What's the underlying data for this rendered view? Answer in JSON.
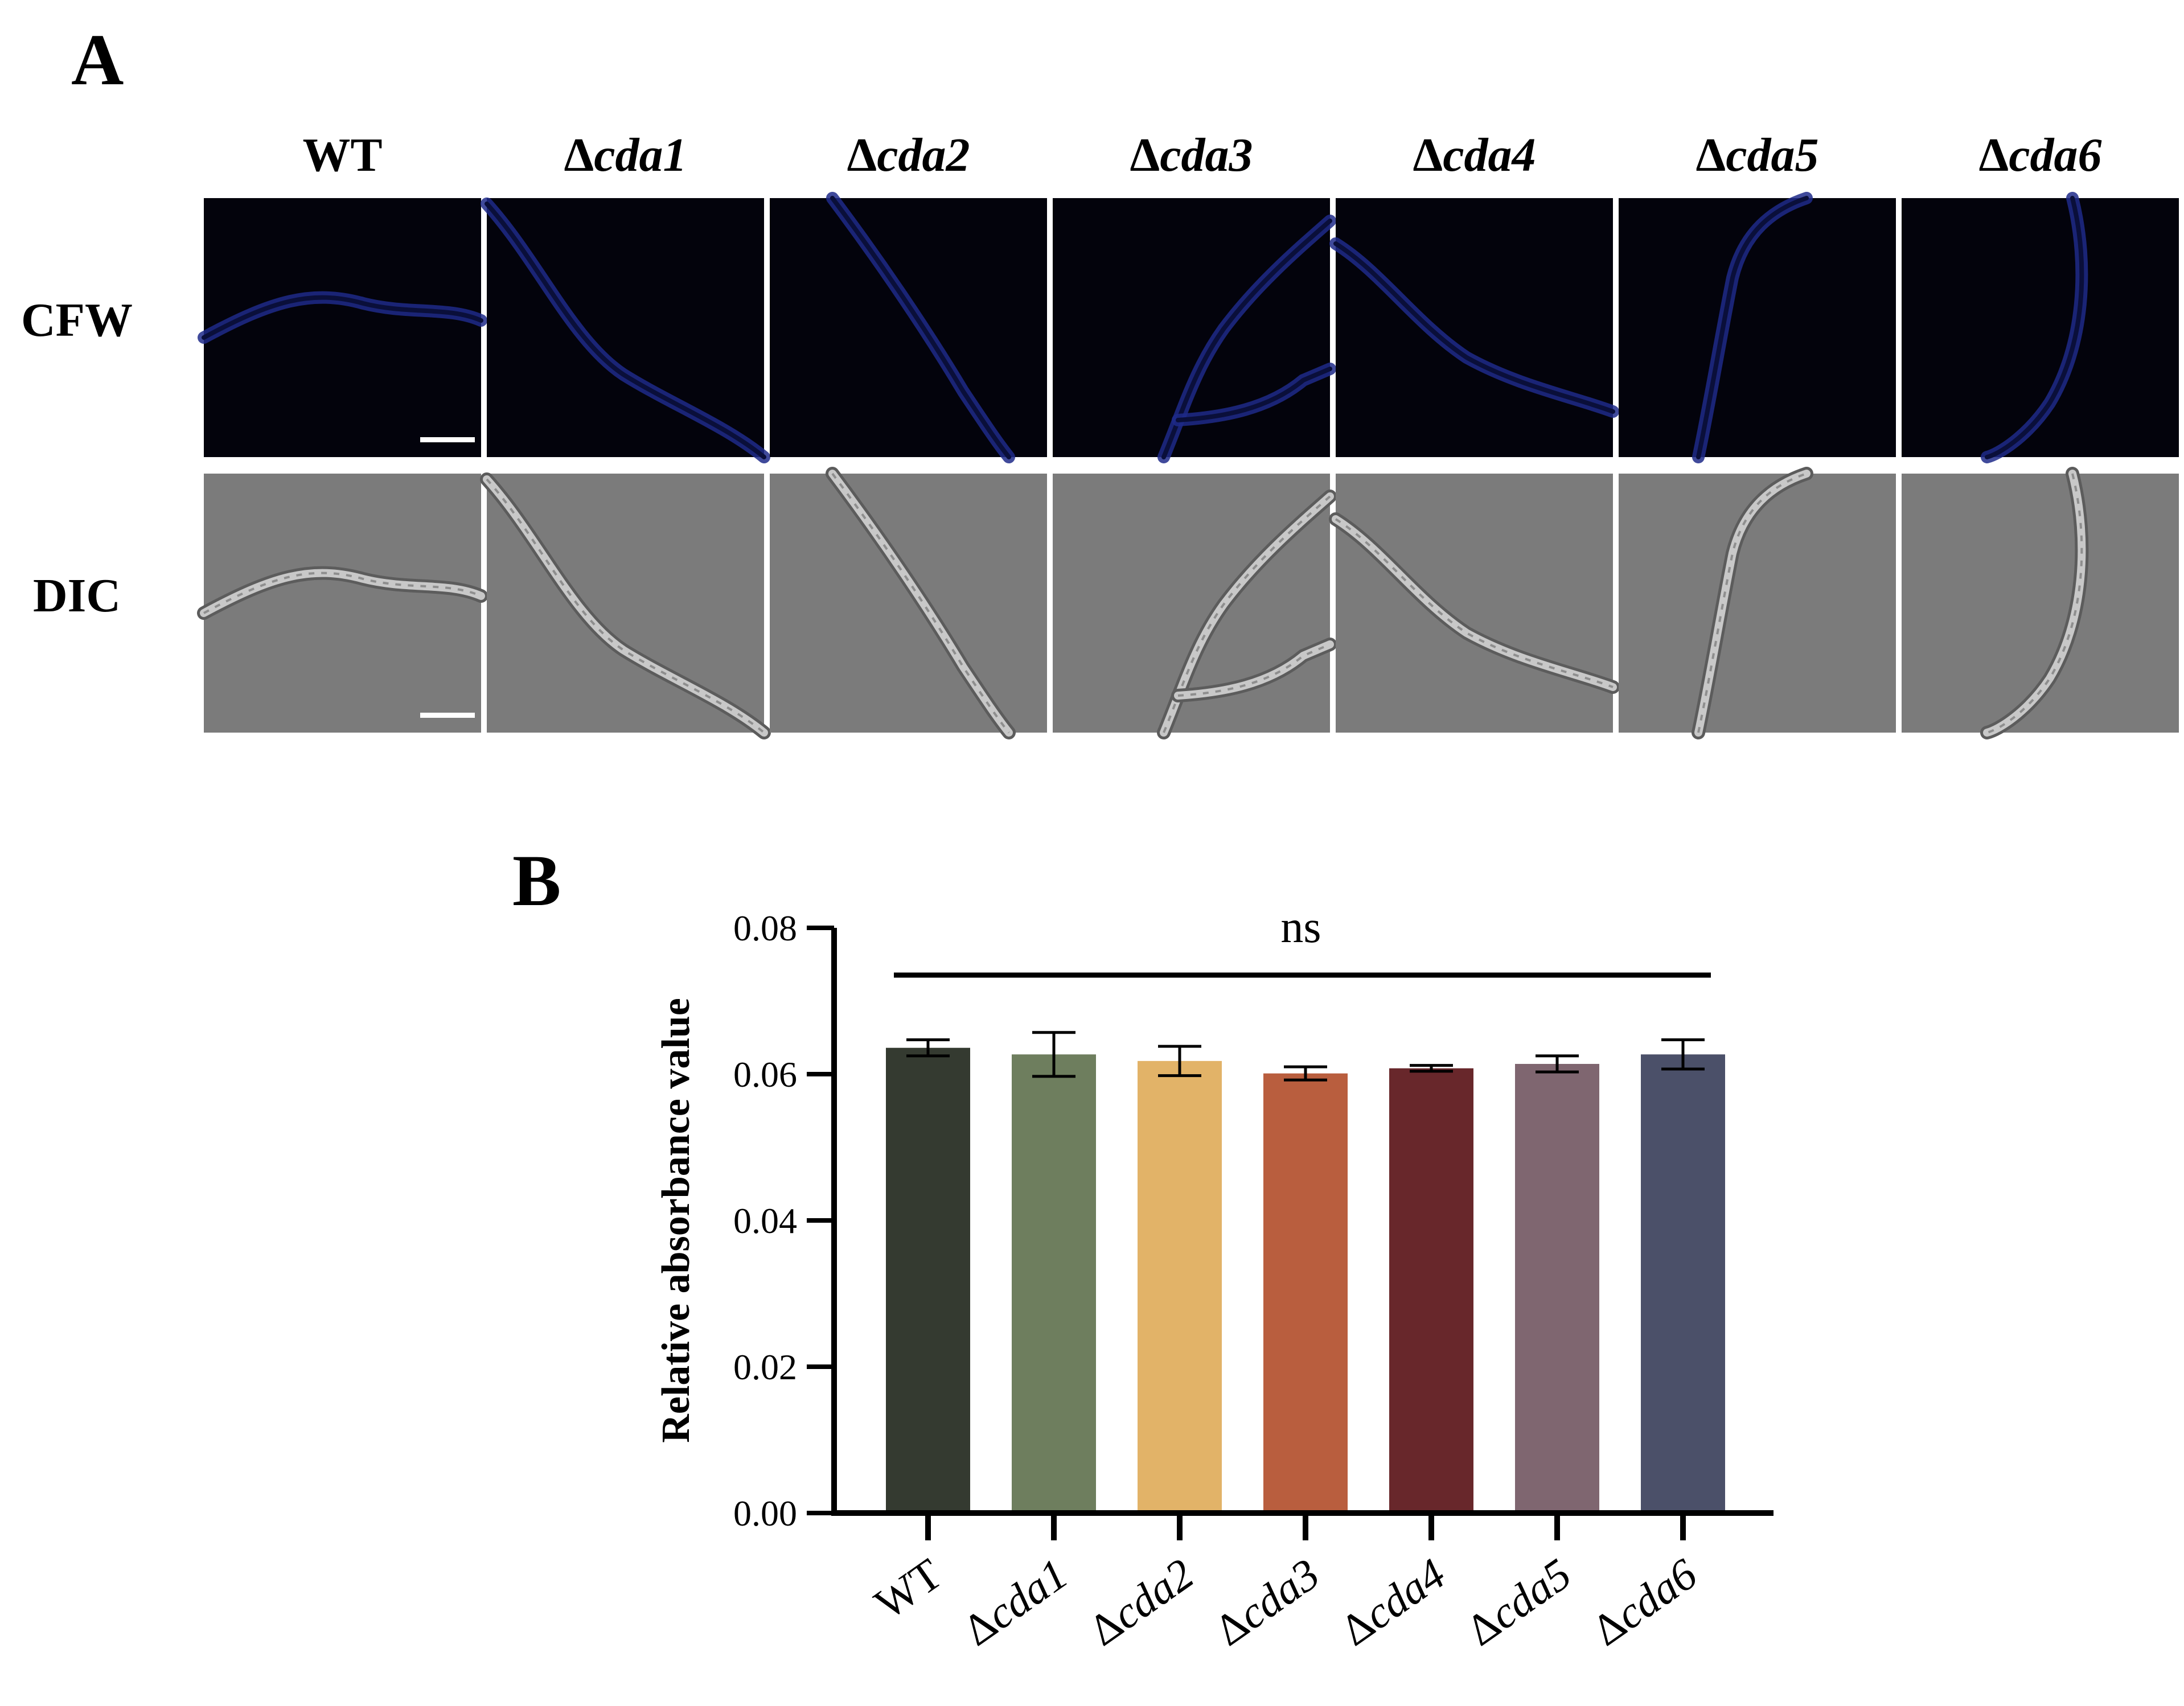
{
  "panels": {
    "a_letter": "A",
    "b_letter": "B"
  },
  "micrographs": {
    "columns": [
      {
        "label": "WT",
        "delta": false,
        "name": "WT"
      },
      {
        "label": "Δcda1",
        "delta": true,
        "name": "cda1"
      },
      {
        "label": "Δcda2",
        "delta": true,
        "name": "cda2"
      },
      {
        "label": "Δcda3",
        "delta": true,
        "name": "cda3"
      },
      {
        "label": "Δcda4",
        "delta": true,
        "name": "cda4"
      },
      {
        "label": "Δcda5",
        "delta": true,
        "name": "cda5"
      },
      {
        "label": "Δcda6",
        "delta": true,
        "name": "cda6"
      }
    ],
    "rows": [
      {
        "label": "CFW",
        "kind": "fluorescence",
        "background": "#03030c",
        "hypha_color": "#1f2a8a"
      },
      {
        "label": "DIC",
        "kind": "brightfield",
        "background": "#7b7b7b",
        "hypha_color": "#c8c8c8"
      }
    ]
  },
  "chart_data": {
    "type": "bar",
    "categories": [
      "WT",
      "Δcda1",
      "Δcda2",
      "Δcda3",
      "Δcda4",
      "Δcda5",
      "Δcda6"
    ],
    "values": [
      0.0636,
      0.0627,
      0.0618,
      0.0601,
      0.0608,
      0.0614,
      0.0627
    ],
    "errors": [
      0.0011,
      0.003,
      0.002,
      0.0009,
      0.0004,
      0.0011,
      0.002
    ],
    "colors": [
      "#343a30",
      "#6e7e5e",
      "#e2b368",
      "#b95e3e",
      "#68272b",
      "#7f6670",
      "#4b5069"
    ],
    "ylabel": "Relative absorbance value",
    "xlabel": "",
    "ylim": [
      0,
      0.08
    ],
    "yticks": [
      "0.00",
      "0.02",
      "0.04",
      "0.06",
      "0.08"
    ],
    "significance": "ns",
    "grid": false,
    "legend": "none"
  }
}
